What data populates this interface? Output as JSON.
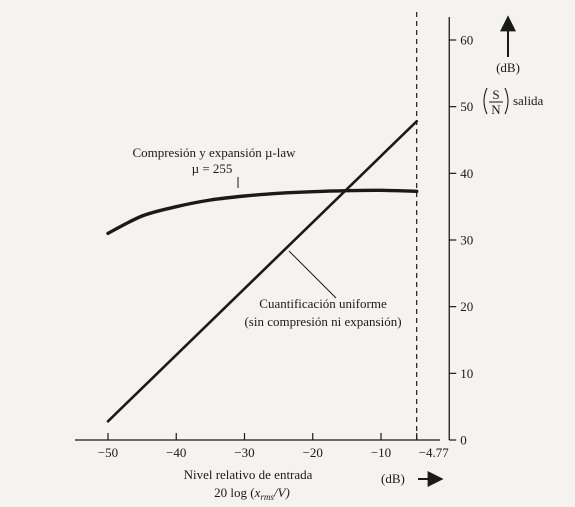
{
  "chart_data": {
    "type": "line",
    "x_axis": {
      "label_line1": "Nivel relativo de entrada",
      "label_line2_prefix": "20 log (",
      "label_line2_var": "x",
      "label_line2_sub": "rms",
      "label_line2_suffix": "/V)",
      "unit": "(dB)",
      "ticks": [
        -50,
        -40,
        -30,
        -20,
        -10
      ],
      "tick_labels": [
        "−50",
        "−40",
        "−30",
        "−20",
        "−10"
      ],
      "extra_tick": {
        "value": -4.77,
        "label": "−4.77"
      },
      "range": [
        -54,
        1
      ]
    },
    "y_axis": {
      "unit": "(dB)",
      "label_S": "S",
      "label_N": "N",
      "label_suffix": "salida",
      "ticks": [
        0,
        10,
        20,
        30,
        40,
        50,
        60
      ],
      "tick_labels": [
        "0",
        "10",
        "20",
        "30",
        "40",
        "50",
        "60"
      ],
      "range": [
        0,
        64
      ]
    },
    "series": [
      {
        "name": "Compresión y expansión µ-law",
        "annotation_line1": "Compresión y expansión µ-law",
        "annotation_line2": "µ = 255",
        "points": [
          [
            -50,
            31.0
          ],
          [
            -45,
            33.6
          ],
          [
            -40,
            35.0
          ],
          [
            -35,
            36.0
          ],
          [
            -30,
            36.6
          ],
          [
            -25,
            37.0
          ],
          [
            -20,
            37.25
          ],
          [
            -15,
            37.4
          ],
          [
            -10,
            37.45
          ],
          [
            -4.77,
            37.3
          ]
        ]
      },
      {
        "name": "Cuantificación uniforme",
        "annotation_line1": "Cuantificación uniforme",
        "annotation_line2": "(sin compresión ni expansión)",
        "points": [
          [
            -50,
            2.8
          ],
          [
            -4.77,
            47.8
          ]
        ]
      }
    ]
  }
}
